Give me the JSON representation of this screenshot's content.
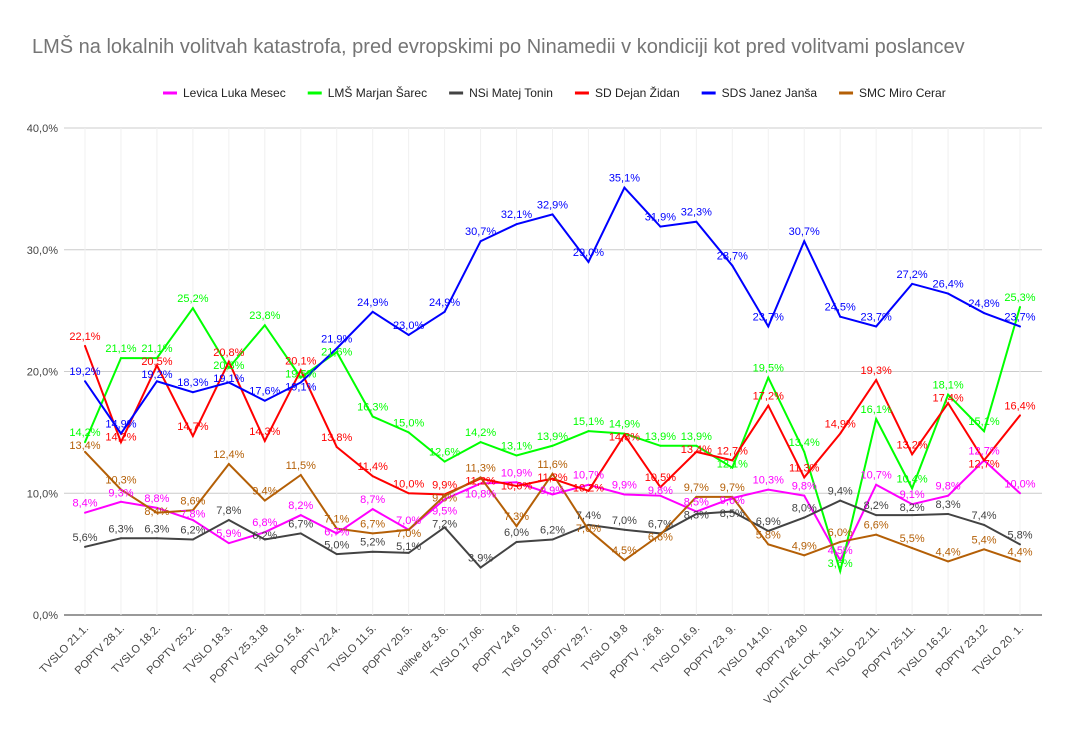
{
  "chart_data": {
    "type": "line",
    "title": "LMŠ na lokalnih volitvah katastrofa, pred evropskimi po Ninamedii v kondiciji kot pred volitvami poslancev",
    "xlabel": "",
    "ylabel": "",
    "ylim": [
      0,
      40
    ],
    "yticks": [
      "0,0%",
      "10,0%",
      "20,0%",
      "30,0%",
      "40,0%"
    ],
    "grid": true,
    "legend": "top",
    "categories": [
      "TVSLO 21.1.",
      "POPTV 28.1.",
      "TVSLO 18.2.",
      "POPTV 25.2.",
      "TVSLO 18.3.",
      "POPTV 25.3.18",
      "TVSLO 15.4.",
      "POPTV 22.4.",
      "TVSLO 11.5.",
      "POPTV 20.5.",
      "volitve dz 3.6.",
      "TVSLO 17.06.",
      "POPTV 24.6",
      "TVSLO 15.07.",
      "POPTV 29.7.",
      "TVSLO 19.8",
      "POPTV , 26.8.",
      "TVSLO 16.9.",
      "POPTV 23. 9.",
      "TVSLO 14.10.",
      "POPTV 28.10",
      "VOLITVE LOK. 18.11.",
      "TVSLO 22.11.",
      "POPTV 25.11.",
      "TVSLO 16.12.",
      "POPTV 23.12",
      "TVSLO 20. 1."
    ],
    "series": [
      {
        "name": "Levica Luka Mesec",
        "color": "#ff00ff",
        "values": [
          8.4,
          9.3,
          8.8,
          7.8,
          5.9,
          6.8,
          8.2,
          6.7,
          8.7,
          7.0,
          9.5,
          10.8,
          10.9,
          9.9,
          10.7,
          9.9,
          9.8,
          8.5,
          9.6,
          10.3,
          9.8,
          4.5,
          10.7,
          9.1,
          9.8,
          12.7,
          10.0
        ]
      },
      {
        "name": "LMŠ Marjan Šarec",
        "color": "#00ff00",
        "values": [
          14.2,
          21.1,
          21.1,
          25.2,
          20.3,
          23.8,
          19.5,
          21.6,
          16.3,
          15.0,
          12.6,
          14.2,
          13.1,
          13.9,
          15.1,
          14.9,
          13.9,
          13.9,
          12.1,
          19.5,
          13.4,
          3.6,
          16.1,
          10.4,
          18.1,
          15.1,
          25.3
        ]
      },
      {
        "name": "NSi Matej Tonin",
        "color": "#434343",
        "values": [
          5.6,
          6.3,
          6.3,
          6.2,
          7.8,
          6.2,
          6.7,
          5.0,
          5.2,
          5.1,
          7.2,
          3.9,
          6.0,
          6.2,
          7.4,
          7.0,
          6.7,
          8.3,
          8.5,
          6.9,
          8.0,
          9.4,
          8.2,
          8.2,
          8.3,
          7.4,
          5.8
        ]
      },
      {
        "name": "SD Dejan Židan",
        "color": "#ff0000",
        "values": [
          22.1,
          14.2,
          20.5,
          14.7,
          20.8,
          14.3,
          20.1,
          13.8,
          11.4,
          10.0,
          9.9,
          11.2,
          10.6,
          11.2,
          10.2,
          14.8,
          10.5,
          13.4,
          12.7,
          17.2,
          11.3,
          14.9,
          19.3,
          13.2,
          17.4,
          12.7,
          16.4
        ]
      },
      {
        "name": "SDS Janez Janša",
        "color": "#0000ff",
        "values": [
          19.2,
          14.9,
          19.2,
          18.3,
          19.1,
          17.6,
          19.1,
          21.9,
          24.9,
          23.0,
          24.9,
          30.7,
          32.1,
          32.9,
          29.0,
          35.1,
          31.9,
          32.3,
          28.7,
          23.7,
          30.7,
          24.5,
          23.7,
          27.2,
          26.4,
          24.8,
          23.7
        ]
      },
      {
        "name": "SMC Miro Cerar",
        "color": "#b45f06",
        "values": [
          13.4,
          10.3,
          8.4,
          8.6,
          12.4,
          9.4,
          11.5,
          7.1,
          6.7,
          7.0,
          9.8,
          11.3,
          7.3,
          11.6,
          7.0,
          4.5,
          6.6,
          9.7,
          9.7,
          5.8,
          4.9,
          6.0,
          6.6,
          5.5,
          4.4,
          5.4,
          4.4
        ]
      }
    ]
  }
}
